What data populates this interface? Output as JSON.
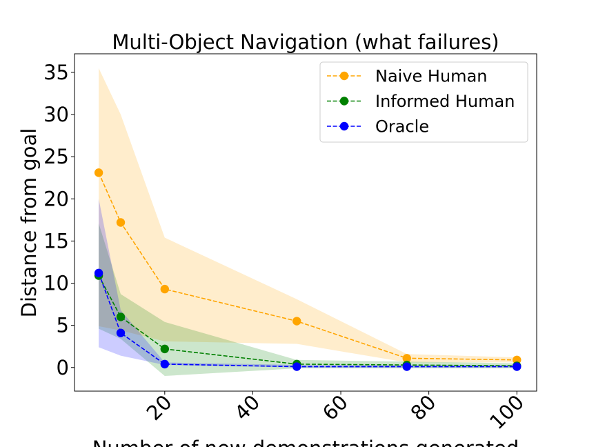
{
  "chart_data": {
    "type": "line",
    "title": "Multi-Object Navigation (what failures)",
    "xlabel": "Number of new demonstrations generated",
    "ylabel": "Distance from goal",
    "x": [
      5,
      10,
      20,
      50,
      75,
      100
    ],
    "xlim": [
      -0.5,
      104.5
    ],
    "ylim": [
      -2.8,
      37.2
    ],
    "xticks": [
      20,
      40,
      60,
      80,
      100
    ],
    "yticks": [
      0,
      5,
      10,
      15,
      20,
      25,
      30,
      35
    ],
    "grid": false,
    "legend_position": "top-right",
    "series": [
      {
        "name": "Naive Human",
        "color": "#ffa500",
        "values": [
          23.1,
          17.2,
          9.3,
          5.5,
          1.1,
          0.9
        ],
        "lower": [
          4.9,
          4.4,
          3.1,
          2.8,
          0.6,
          0.6
        ],
        "upper": [
          35.5,
          30.0,
          15.4,
          8.1,
          1.6,
          1.2
        ]
      },
      {
        "name": "Informed Human",
        "color": "#008000",
        "values": [
          10.9,
          6.0,
          2.2,
          0.4,
          0.3,
          0.2
        ],
        "lower": [
          4.6,
          3.4,
          -1.0,
          -0.1,
          -0.1,
          -0.1
        ],
        "upper": [
          17.1,
          8.7,
          5.4,
          0.9,
          0.7,
          0.5
        ]
      },
      {
        "name": "Oracle",
        "color": "#0000ff",
        "values": [
          11.2,
          4.1,
          0.4,
          0.1,
          0.1,
          0.1
        ],
        "lower": [
          2.4,
          1.4,
          0.3,
          0.0,
          0.0,
          0.0
        ],
        "upper": [
          20.0,
          6.8,
          0.6,
          0.3,
          0.3,
          0.3
        ]
      }
    ]
  }
}
